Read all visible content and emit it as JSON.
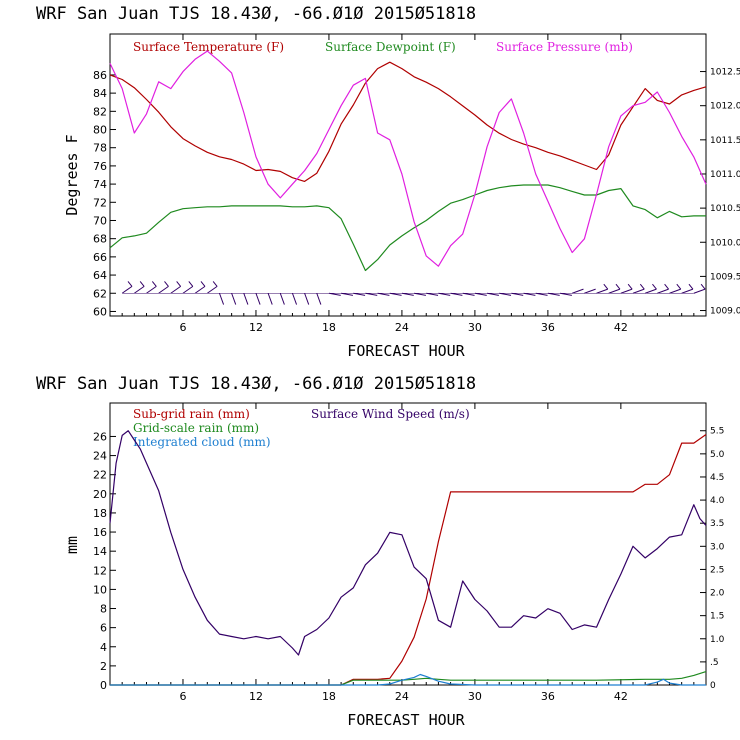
{
  "chart_data": [
    {
      "type": "line",
      "title": "WRF  San Juan TJS  18.43Ø, -66.Ø1Ø  2015Ø51818",
      "xlabel": "FORECAST HOUR",
      "ylabel": "Degrees F",
      "y2label": "",
      "xlim": [
        0,
        49
      ],
      "ylim": [
        59.5,
        90.5
      ],
      "y2lim": [
        1008.92,
        1013.05
      ],
      "x_ticks": [
        6,
        12,
        18,
        24,
        30,
        36,
        42
      ],
      "y_ticks": [
        60,
        62,
        64,
        66,
        68,
        70,
        72,
        74,
        76,
        78,
        80,
        82,
        84,
        86
      ],
      "y2_ticks": [
        1009.0,
        1009.5,
        1010.0,
        1010.5,
        1011.0,
        1011.5,
        1012.0,
        1012.5
      ],
      "y2_tick_labels": [
        "1009.0",
        "1009.5",
        "1010.0",
        "1010.5",
        "1011.0",
        "1011.5",
        "1012.0",
        "1012.5"
      ],
      "grid": false,
      "legend_position": "top",
      "series": [
        {
          "name": "Surface Temperature (F)",
          "color": "#b00000",
          "axis": "left",
          "x": [
            0,
            1,
            2,
            3,
            4,
            5,
            6,
            7,
            8,
            9,
            10,
            11,
            12,
            13,
            14,
            15,
            16,
            17,
            18,
            19,
            20,
            21,
            22,
            23,
            24,
            25,
            26,
            27,
            28,
            29,
            30,
            31,
            32,
            33,
            34,
            35,
            36,
            37,
            38,
            39,
            40,
            41,
            42,
            43,
            44,
            45,
            46,
            47,
            48,
            49
          ],
          "values": [
            86.0,
            85.5,
            84.6,
            83.3,
            81.9,
            80.3,
            79.0,
            78.2,
            77.5,
            77.0,
            76.7,
            76.2,
            75.5,
            75.6,
            75.4,
            74.7,
            74.3,
            75.2,
            77.6,
            80.6,
            82.7,
            85.1,
            86.7,
            87.4,
            86.7,
            85.8,
            85.2,
            84.5,
            83.6,
            82.6,
            81.6,
            80.5,
            79.6,
            78.9,
            78.4,
            78.0,
            77.5,
            77.1,
            76.6,
            76.1,
            75.6,
            77.2,
            80.5,
            82.5,
            84.5,
            83.2,
            82.8,
            83.8,
            84.3,
            84.7
          ]
        },
        {
          "name": "Surface Dewpoint (F)",
          "color": "#1f8a1f",
          "axis": "left",
          "x": [
            0,
            1,
            2,
            3,
            4,
            5,
            6,
            7,
            8,
            9,
            10,
            11,
            12,
            13,
            14,
            15,
            16,
            17,
            18,
            19,
            20,
            21,
            22,
            23,
            24,
            25,
            26,
            27,
            28,
            29,
            30,
            31,
            32,
            33,
            34,
            35,
            36,
            37,
            38,
            39,
            40,
            41,
            42,
            43,
            44,
            45,
            46,
            47,
            48,
            49
          ],
          "values": [
            67.0,
            68.1,
            68.3,
            68.6,
            69.8,
            70.9,
            71.3,
            71.4,
            71.5,
            71.5,
            71.6,
            71.6,
            71.6,
            71.6,
            71.6,
            71.5,
            71.5,
            71.6,
            71.4,
            70.2,
            67.4,
            64.5,
            65.7,
            67.3,
            68.3,
            69.2,
            70.0,
            71.0,
            71.9,
            72.3,
            72.8,
            73.3,
            73.6,
            73.8,
            73.9,
            73.9,
            73.9,
            73.6,
            73.2,
            72.8,
            72.8,
            73.3,
            73.5,
            71.6,
            71.2,
            70.3,
            71.0,
            70.4,
            70.5,
            70.5
          ]
        },
        {
          "name": "Surface Pressure (mb)",
          "color": "#e020e0",
          "axis": "right",
          "x": [
            0,
            1,
            2,
            3,
            4,
            5,
            6,
            7,
            8,
            9,
            10,
            11,
            12,
            13,
            14,
            15,
            16,
            17,
            18,
            19,
            20,
            21,
            22,
            23,
            24,
            25,
            26,
            27,
            28,
            29,
            30,
            31,
            32,
            33,
            34,
            35,
            36,
            37,
            38,
            39,
            40,
            41,
            42,
            43,
            44,
            45,
            46,
            47,
            48,
            49
          ],
          "values": [
            1012.62,
            1012.25,
            1011.6,
            1011.88,
            1012.35,
            1012.25,
            1012.5,
            1012.68,
            1012.8,
            1012.65,
            1012.48,
            1011.9,
            1011.25,
            1010.85,
            1010.65,
            1010.85,
            1011.05,
            1011.3,
            1011.65,
            1012.0,
            1012.3,
            1012.4,
            1011.6,
            1011.5,
            1011.0,
            1010.3,
            1009.8,
            1009.65,
            1009.95,
            1010.12,
            1010.7,
            1011.4,
            1011.9,
            1012.1,
            1011.6,
            1011.0,
            1010.6,
            1010.2,
            1009.85,
            1010.05,
            1010.7,
            1011.4,
            1011.85,
            1012.0,
            1012.05,
            1012.2,
            1011.9,
            1011.55,
            1011.25,
            1010.85
          ]
        }
      ],
      "wind_barbs": {
        "from_hour": 1,
        "to_hour": 48,
        "every_hours": 1,
        "color": "#330066"
      }
    },
    {
      "type": "line",
      "title": "WRF  San Juan TJS  18.43Ø, -66.Ø1Ø  2015Ø51818",
      "xlabel": "FORECAST HOUR",
      "ylabel": "mm",
      "y2label": "",
      "xlim": [
        0,
        49
      ],
      "ylim": [
        0,
        29.5
      ],
      "y2lim": [
        0,
        6.1
      ],
      "x_ticks": [
        6,
        12,
        18,
        24,
        30,
        36,
        42
      ],
      "y_ticks": [
        0,
        2,
        4,
        6,
        8,
        10,
        12,
        14,
        16,
        18,
        20,
        22,
        24,
        26
      ],
      "y2_ticks": [
        0,
        0.5,
        1.0,
        1.5,
        2.0,
        2.5,
        3.0,
        3.5,
        4.0,
        4.5,
        5.0,
        5.5
      ],
      "y2_tick_labels": [
        "0",
        ".5",
        "1.0",
        "1.5",
        "2.0",
        "2.5",
        "3.0",
        "3.5",
        "4.0",
        "4.5",
        "5.0",
        "5.5"
      ],
      "grid": false,
      "legend_position": "top",
      "series": [
        {
          "name": "Sub-grid rain (mm)",
          "color": "#b00000",
          "axis": "left",
          "x": [
            0,
            19,
            20,
            21,
            22,
            23,
            24,
            25,
            26,
            27,
            28,
            29,
            30,
            35,
            40,
            41,
            42,
            43,
            44,
            45,
            46,
            47,
            48,
            49
          ],
          "values": [
            0,
            0,
            0.6,
            0.6,
            0.6,
            0.7,
            2.5,
            5.0,
            9.0,
            15.0,
            20.2,
            20.2,
            20.2,
            20.2,
            20.2,
            20.2,
            20.2,
            20.2,
            21.0,
            21.0,
            22.0,
            25.3,
            25.3,
            26.2
          ]
        },
        {
          "name": "Grid-scale rain (mm)",
          "color": "#1f8a1f",
          "axis": "left",
          "x": [
            0,
            19,
            20,
            24,
            25,
            26,
            27,
            28,
            30,
            35,
            40,
            44,
            46,
            47,
            48,
            49
          ],
          "values": [
            0,
            0,
            0.5,
            0.5,
            0.6,
            0.7,
            0.6,
            0.5,
            0.5,
            0.5,
            0.5,
            0.6,
            0.6,
            0.7,
            1.0,
            1.4
          ]
        },
        {
          "name": "Integrated cloud (mm)",
          "color": "#1e7fd0",
          "axis": "left",
          "x": [
            0,
            22,
            23,
            24,
            25,
            25.5,
            26,
            27,
            28,
            30,
            40,
            44,
            45,
            45.5,
            46,
            47,
            48,
            49
          ],
          "values": [
            0,
            0,
            0.1,
            0.5,
            0.8,
            1.1,
            0.9,
            0.4,
            0.1,
            0,
            0,
            0,
            0.3,
            0.6,
            0.2,
            0,
            0,
            0
          ]
        },
        {
          "name": "Surface Wind Speed (m/s)",
          "color": "#330066",
          "axis": "right",
          "x": [
            0,
            0.5,
            1,
            1.5,
            2,
            2.5,
            3,
            4,
            5,
            6,
            7,
            8,
            9,
            10,
            11,
            12,
            13,
            14,
            15,
            15.5,
            16,
            17,
            18,
            19,
            20,
            21,
            22,
            23,
            24,
            25,
            26,
            27,
            28,
            29,
            30,
            31,
            32,
            33,
            34,
            35,
            36,
            37,
            38,
            39,
            40,
            41,
            42,
            43,
            44,
            45,
            46,
            47,
            48,
            48.5,
            49
          ],
          "values": [
            3.5,
            4.8,
            5.4,
            5.5,
            5.3,
            5.1,
            4.8,
            4.2,
            3.3,
            2.5,
            1.9,
            1.4,
            1.1,
            1.05,
            1.0,
            1.05,
            1.0,
            1.05,
            0.8,
            0.65,
            1.05,
            1.2,
            1.45,
            1.9,
            2.1,
            2.6,
            2.85,
            3.3,
            3.25,
            2.55,
            2.3,
            1.4,
            1.25,
            2.25,
            1.85,
            1.6,
            1.25,
            1.25,
            1.5,
            1.45,
            1.65,
            1.55,
            1.2,
            1.3,
            1.25,
            1.85,
            2.4,
            3.0,
            2.75,
            2.95,
            3.2,
            3.25,
            3.9,
            3.6,
            3.45
          ]
        }
      ]
    }
  ]
}
